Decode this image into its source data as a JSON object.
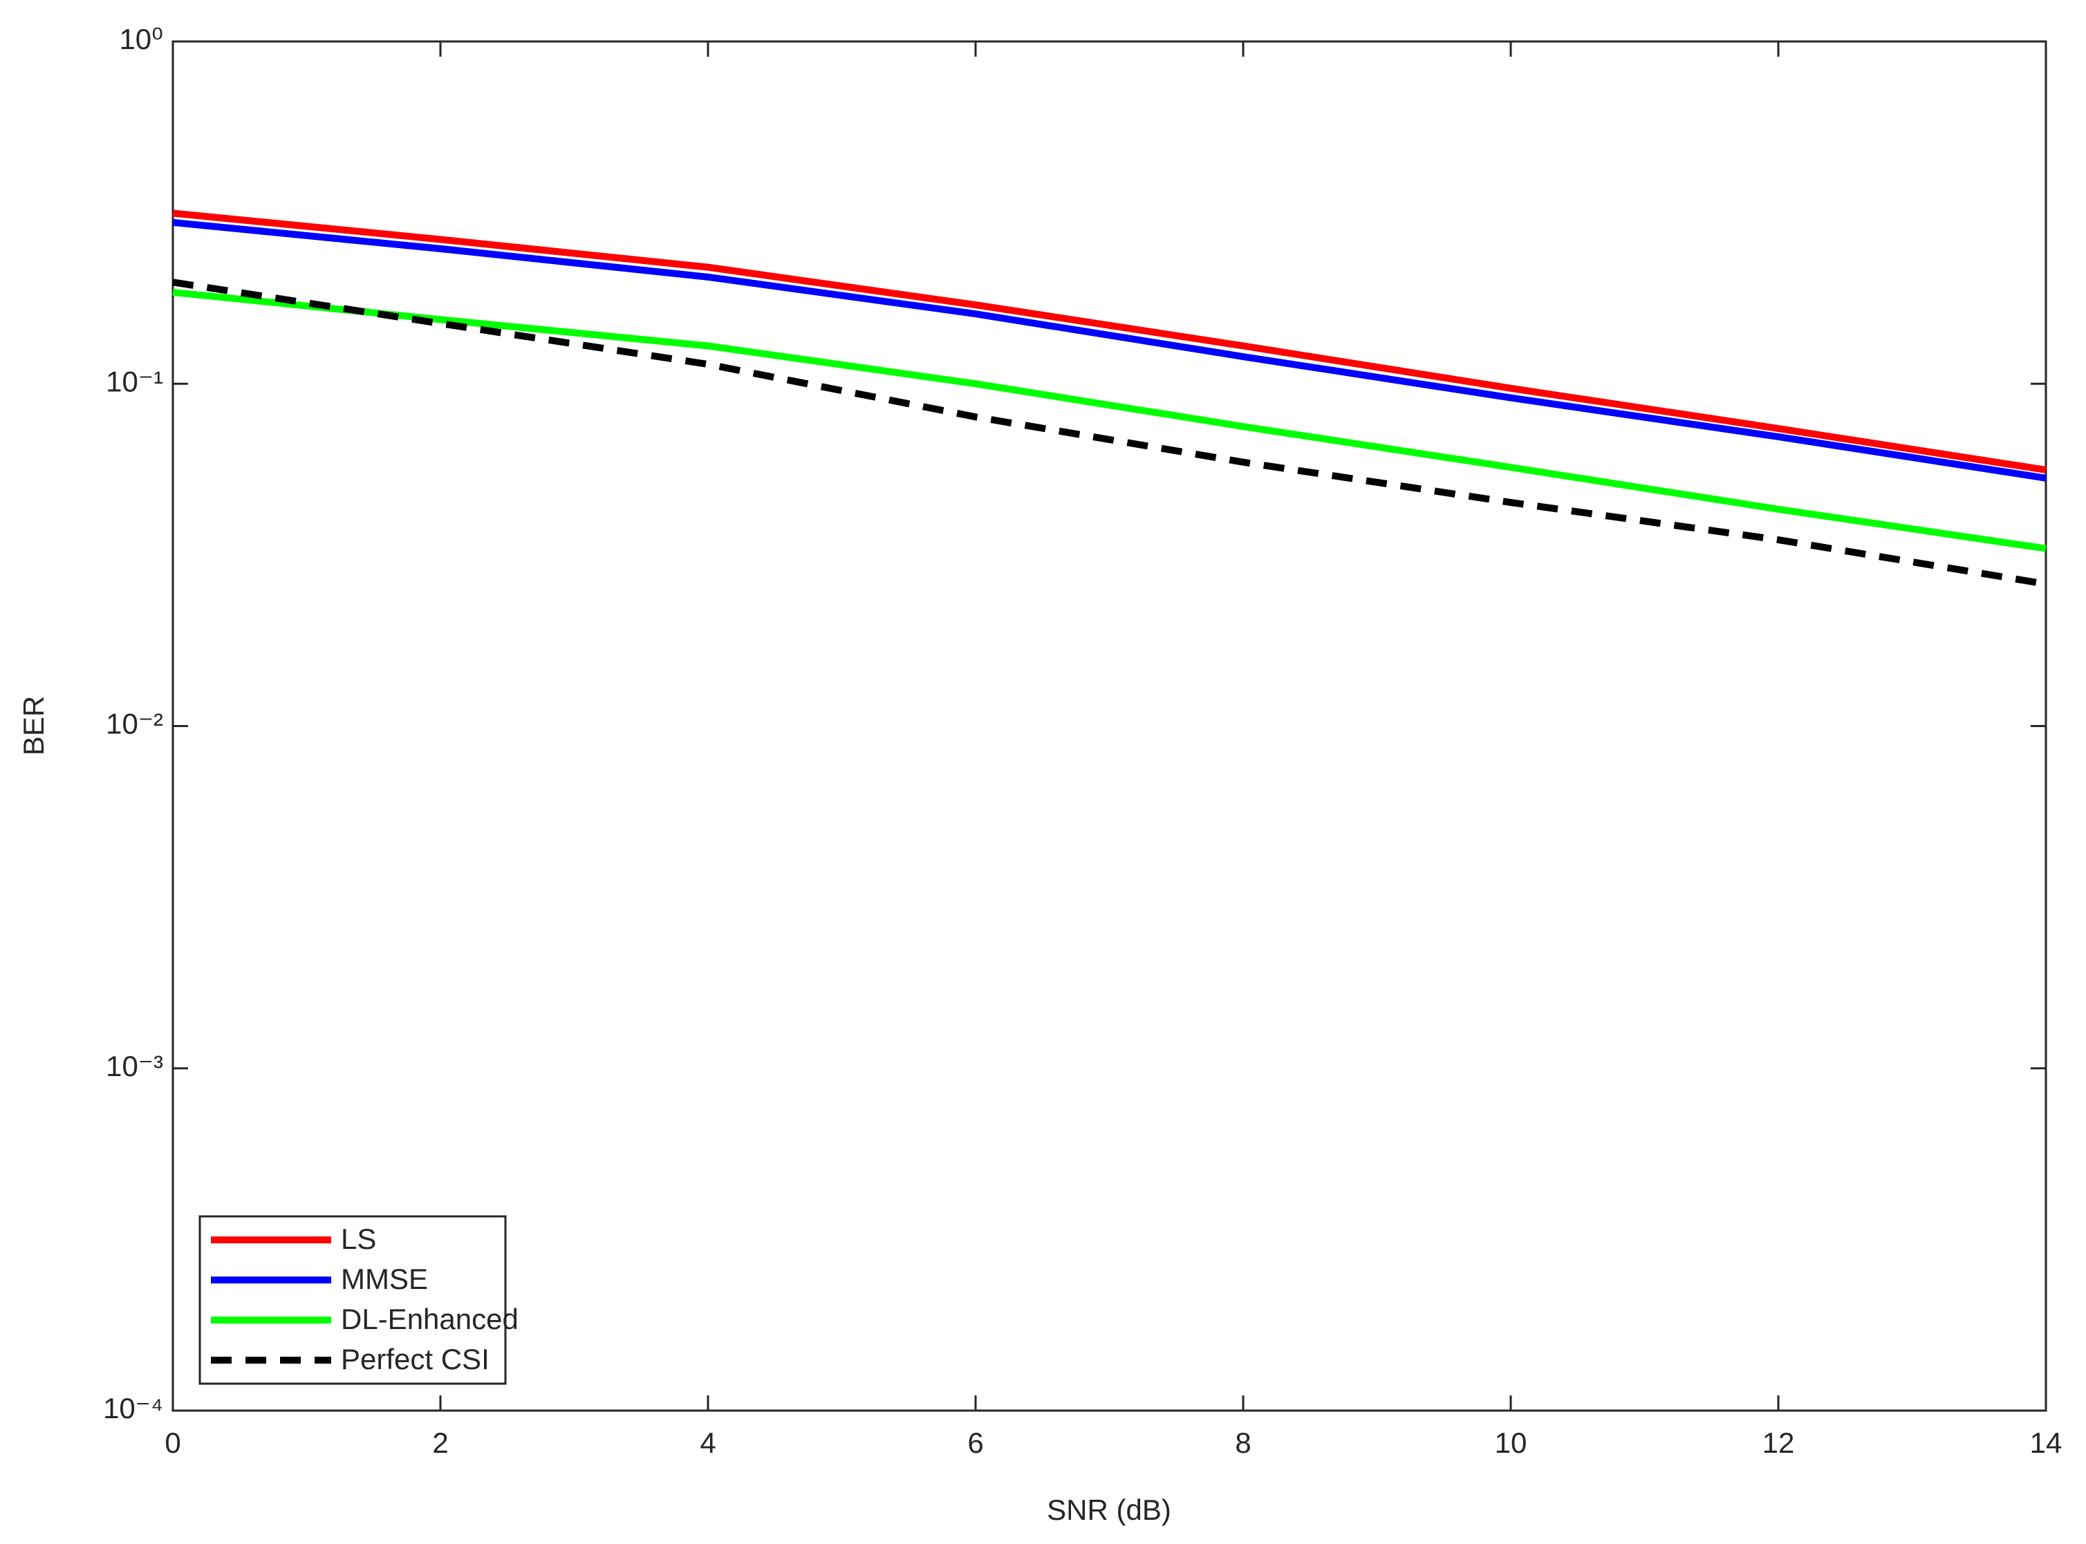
{
  "chart_data": {
    "type": "line",
    "x_label": "SNR (dB)",
    "y_label": "BER",
    "x": [
      0,
      2,
      4,
      6,
      8,
      10,
      12,
      14
    ],
    "series": [
      {
        "name": "LS",
        "color": "#ff0000",
        "style": "solid",
        "values": [
          0.315,
          0.264,
          0.219,
          0.17,
          0.129,
          0.097,
          0.074,
          0.056
        ]
      },
      {
        "name": "MMSE",
        "color": "#0000ff",
        "style": "solid",
        "values": [
          0.296,
          0.248,
          0.205,
          0.16,
          0.12,
          0.091,
          0.07,
          0.053
        ]
      },
      {
        "name": "DL-Enhanced",
        "color": "#00ff00",
        "style": "solid",
        "values": [
          0.185,
          0.154,
          0.129,
          0.1,
          0.075,
          0.057,
          0.043,
          0.033
        ]
      },
      {
        "name": "Perfect CSI",
        "color": "#000000",
        "style": "dashed",
        "values": [
          0.198,
          0.15,
          0.114,
          0.08,
          0.059,
          0.045,
          0.035,
          0.026
        ]
      }
    ],
    "xlim": [
      0,
      14
    ],
    "xticks": [
      0,
      2,
      4,
      6,
      8,
      10,
      12,
      14
    ],
    "ylim": [
      0.0001,
      1
    ],
    "y_scale": "log",
    "yticks": [
      {
        "value": 0.0001,
        "label": "10⁻⁴"
      },
      {
        "value": 0.001,
        "label": "10⁻³"
      },
      {
        "value": 0.01,
        "label": "10⁻²"
      },
      {
        "value": 0.1,
        "label": "10⁻¹"
      },
      {
        "value": 1,
        "label": "10⁰"
      }
    ],
    "grid": false,
    "legend": "southwest"
  }
}
